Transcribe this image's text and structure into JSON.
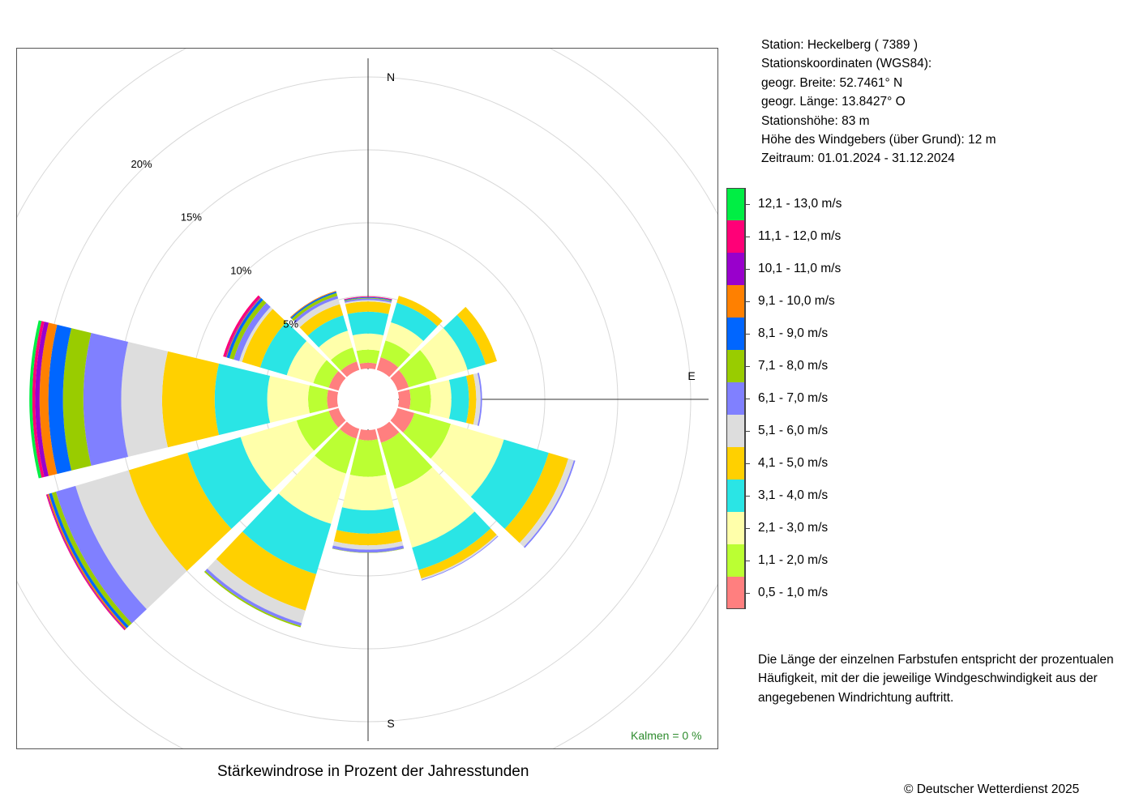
{
  "station_info": {
    "station": "Station:  Heckelberg  ( 7389 )",
    "coords_heading": "Stationskoordinaten (WGS84):",
    "latitude": "geogr. Breite: 52.7461° N",
    "longitude": "geogr. Länge: 13.8427° O",
    "elevation": "Stationshöhe: 83 m",
    "sensor_height": "Höhe des Windgebers (über Grund): 12 m",
    "period": "Zeitraum: 01.01.2024 - 31.12.2024"
  },
  "note": [
    "Die Länge der einzelnen Farbstufen entspricht der prozentualen",
    "Häufigkeit, mit der die jeweilige Windgeschwindigkeit aus der",
    "angegebenen Windrichtung auftritt."
  ],
  "copyright": "© Deutscher Wetterdienst  2025",
  "chart_data": {
    "type": "windrose",
    "title": "Stärkewindrose in Prozent der Jahresstunden",
    "calm_label": "Kalmen  =  0 %",
    "compass_labels": [
      "N",
      "E",
      "S"
    ],
    "ring_labels": [
      "5%",
      "10%",
      "15%",
      "20%"
    ],
    "rings": [
      5,
      10,
      15,
      20,
      25
    ],
    "scale_max": 25,
    "directions_deg": [
      0,
      30,
      60,
      90,
      120,
      150,
      180,
      210,
      240,
      270,
      300,
      330
    ],
    "classes": [
      {
        "label": "0,5 - 1,0 m/s",
        "color": "#ff7f7f"
      },
      {
        "label": "1,1 - 2,0 m/s",
        "color": "#bbff33"
      },
      {
        "label": "2,1 - 3,0 m/s",
        "color": "#ffffaa"
      },
      {
        "label": "3,1 - 4,0 m/s",
        "color": "#2ae5e5"
      },
      {
        "label": "4,1 - 5,0 m/s",
        "color": "#ffd000"
      },
      {
        "label": "5,1 - 6,0 m/s",
        "color": "#dddddd"
      },
      {
        "label": "6,1 - 7,0 m/s",
        "color": "#8080ff"
      },
      {
        "label": "7,1 - 8,0 m/s",
        "color": "#99cc00"
      },
      {
        "label": "8,1 - 9,0 m/s",
        "color": "#0066ff"
      },
      {
        "label": "9,1 - 10,0 m/s",
        "color": "#ff8000"
      },
      {
        "label": "10,1 - 11,0 m/s",
        "color": "#9900cc"
      },
      {
        "label": "11,1 - 12,0 m/s",
        "color": "#ff0077"
      },
      {
        "label": "12,1 - 13,0 m/s",
        "color": "#00ee44"
      }
    ],
    "series": [
      {
        "direction": 0,
        "values": [
          0.4,
          0.9,
          1.1,
          1.5,
          0.7,
          0.1,
          0.1,
          0.05,
          0.05,
          0,
          0,
          0.05,
          0
        ]
      },
      {
        "direction": 30,
        "values": [
          0.9,
          1.2,
          1.3,
          1.4,
          0.5,
          0,
          0,
          0,
          0,
          0,
          0,
          0,
          0
        ]
      },
      {
        "direction": 60,
        "values": [
          0.8,
          2.0,
          2.2,
          1.3,
          0.8,
          0,
          0,
          0,
          0,
          0,
          0,
          0,
          0
        ]
      },
      {
        "direction": 90,
        "values": [
          0.8,
          1.4,
          1.4,
          1.2,
          0.5,
          0.3,
          0.1,
          0,
          0,
          0,
          0,
          0,
          0
        ]
      },
      {
        "direction": 120,
        "values": [
          1.2,
          2.6,
          3.8,
          3.2,
          1.4,
          0.4,
          0.1,
          0,
          0,
          0,
          0,
          0,
          0
        ]
      },
      {
        "direction": 150,
        "values": [
          1.0,
          3.3,
          4.2,
          1.6,
          0.6,
          0.1,
          0.05,
          0,
          0,
          0,
          0,
          0,
          0
        ]
      },
      {
        "direction": 180,
        "values": [
          0.7,
          2.5,
          2.3,
          1.6,
          0.8,
          0.3,
          0.2,
          0.02,
          0,
          0,
          0,
          0,
          0
        ]
      },
      {
        "direction": 210,
        "values": [
          0.7,
          2.5,
          3.6,
          3.6,
          2.6,
          0.9,
          0.2,
          0.1,
          0,
          0,
          0,
          0,
          0
        ]
      },
      {
        "direction": 240,
        "values": [
          0.7,
          2.3,
          4.0,
          3.8,
          4.2,
          3.8,
          1.4,
          0.3,
          0.2,
          0.1,
          0.05,
          0.05,
          0
        ]
      },
      {
        "direction": 270,
        "values": [
          0.7,
          1.3,
          2.8,
          3.6,
          3.6,
          2.8,
          2.6,
          1.4,
          1.0,
          0.6,
          0.3,
          0.2,
          0.2
        ]
      },
      {
        "direction": 300,
        "values": [
          0.7,
          1.1,
          1.9,
          1.9,
          1.3,
          0.2,
          0.4,
          0.3,
          0.2,
          0.05,
          0.05,
          0.15,
          0
        ]
      },
      {
        "direction": 330,
        "values": [
          0.6,
          1.0,
          1.2,
          1.1,
          0.8,
          0.4,
          0.2,
          0.2,
          0.1,
          0.05,
          0,
          0,
          0
        ]
      }
    ]
  }
}
